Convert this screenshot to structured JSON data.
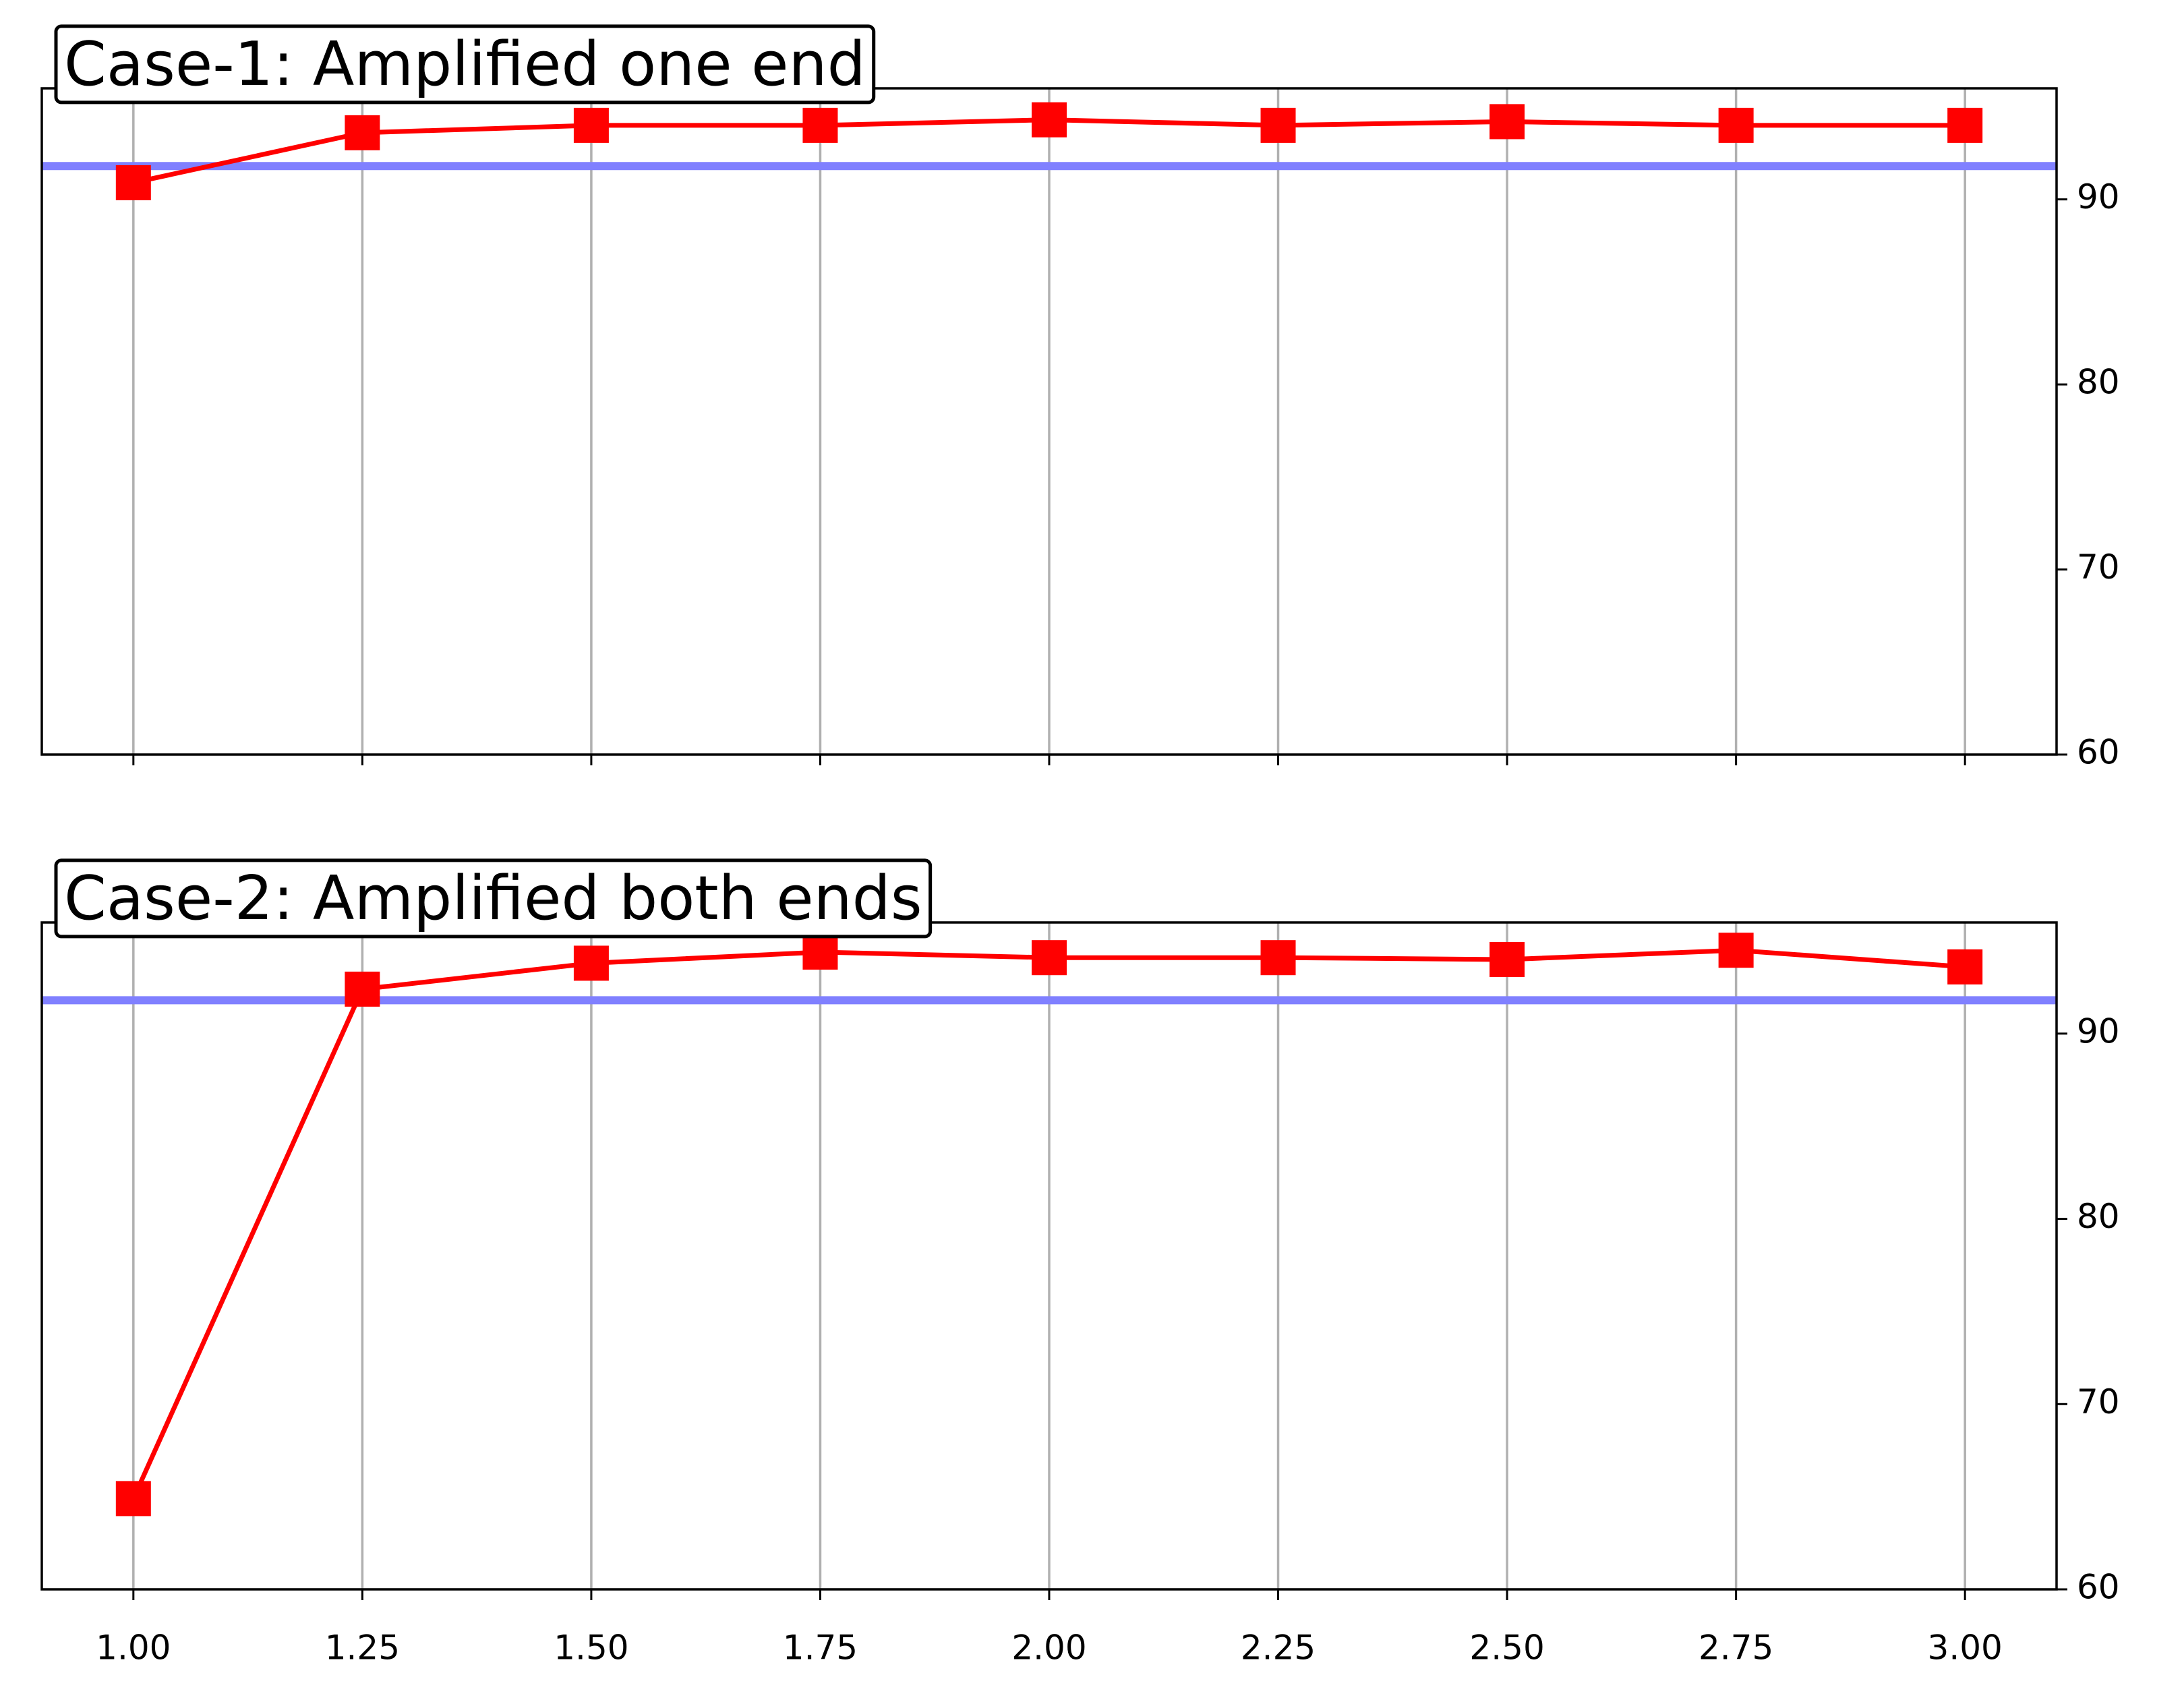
{
  "chart_data": [
    {
      "type": "line",
      "title": "Case-1: Amplified one end",
      "x": [
        1,
        1.25,
        1.5,
        1.75,
        2,
        2.25,
        2.5,
        2.75,
        3
      ],
      "series": [
        {
          "color": "#ff0000",
          "values": [
            90.9,
            93.6,
            94.0,
            94.0,
            94.3,
            94.0,
            94.2,
            94.0,
            94.0
          ]
        }
      ],
      "hline": 91.8,
      "hline_color": "#8080ff",
      "xlim": [
        0.9,
        3.1
      ],
      "xticks": [
        1,
        1.25,
        1.5,
        1.75,
        2,
        2.25,
        2.5,
        2.75,
        3
      ],
      "ylim": [
        60,
        96
      ],
      "yticks": [
        60,
        70,
        80,
        90
      ],
      "grid": "x",
      "y_axis_side": "right"
    },
    {
      "type": "line",
      "title": "Case-2: Amplified both ends",
      "x": [
        1,
        1.25,
        1.5,
        1.75,
        2,
        2.25,
        2.5,
        2.75,
        3
      ],
      "series": [
        {
          "color": "#ff0000",
          "values": [
            64.9,
            92.4,
            93.8,
            94.4,
            94.1,
            94.1,
            94.0,
            94.5,
            93.6
          ]
        }
      ],
      "hline": 91.8,
      "hline_color": "#8080ff",
      "xlim": [
        0.9,
        3.1
      ],
      "xticks": [
        {
          "value": 1,
          "label": "1.00"
        },
        {
          "value": 1.25,
          "label": "1.25"
        },
        {
          "value": 1.5,
          "label": "1.50"
        },
        {
          "value": 1.75,
          "label": "1.75"
        },
        {
          "value": 2,
          "label": "2.00"
        },
        {
          "value": 2.25,
          "label": "2.25"
        },
        {
          "value": 2.5,
          "label": "2.50"
        },
        {
          "value": 2.75,
          "label": "2.75"
        },
        {
          "value": 3,
          "label": "3.00"
        }
      ],
      "ylim": [
        60,
        96
      ],
      "yticks": [
        60,
        70,
        80,
        90
      ],
      "grid": "x",
      "y_axis_side": "right"
    }
  ]
}
